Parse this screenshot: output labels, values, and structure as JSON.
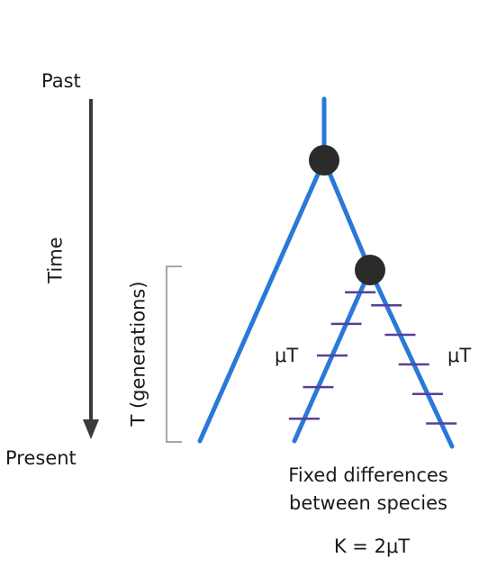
{
  "labels": {
    "past": "Past",
    "present": "Present",
    "time": "Time",
    "generations": "T (generations)",
    "left_rate": "μT",
    "right_rate": "μT",
    "caption_line1": "Fixed differences",
    "caption_line2": "between species",
    "formula": "K = 2μT"
  },
  "colors": {
    "branch": "#2979d8",
    "node": "#2b2b2b",
    "mutation_tick": "#5a3d9a",
    "arrow": "#3a3a3a",
    "bracket": "#8a8a8a"
  },
  "mutations": {
    "left_branch_count": 5,
    "right_branch_count": 5
  }
}
